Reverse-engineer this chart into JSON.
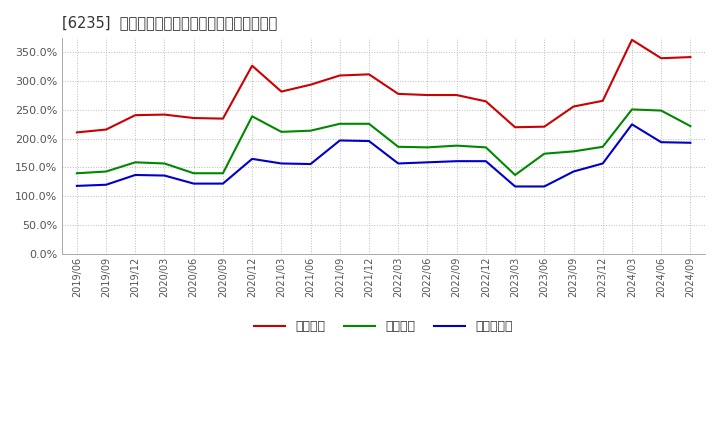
{
  "title": "[6235]  流動比率、当座比率、現預金比率の推移",
  "ylim": [
    0.0,
    3.75
  ],
  "yticks": [
    0.0,
    0.5,
    1.0,
    1.5,
    2.0,
    2.5,
    3.0,
    3.5
  ],
  "legend": [
    "流動比率",
    "当座比率",
    "現預金比率"
  ],
  "dates": [
    "2019/06",
    "2019/09",
    "2019/12",
    "2020/03",
    "2020/06",
    "2020/09",
    "2020/12",
    "2021/03",
    "2021/06",
    "2021/09",
    "2021/12",
    "2022/03",
    "2022/06",
    "2022/09",
    "2022/12",
    "2023/03",
    "2023/06",
    "2023/09",
    "2023/12",
    "2024/03",
    "2024/06",
    "2024/09"
  ],
  "ryudo": [
    2.11,
    2.16,
    2.41,
    2.42,
    2.36,
    2.35,
    3.27,
    2.82,
    2.94,
    3.1,
    3.12,
    2.78,
    2.76,
    2.76,
    2.65,
    2.2,
    2.21,
    2.56,
    2.66,
    3.72,
    3.4,
    3.42
  ],
  "toza": [
    1.4,
    1.43,
    1.59,
    1.57,
    1.4,
    1.4,
    2.39,
    2.12,
    2.14,
    2.26,
    2.26,
    1.86,
    1.85,
    1.88,
    1.85,
    1.37,
    1.74,
    1.78,
    1.86,
    2.51,
    2.49,
    2.22
  ],
  "genkin": [
    1.18,
    1.2,
    1.37,
    1.36,
    1.22,
    1.22,
    1.65,
    1.57,
    1.56,
    1.97,
    1.96,
    1.57,
    1.59,
    1.61,
    1.61,
    1.17,
    1.17,
    1.43,
    1.57,
    2.25,
    1.94,
    1.93
  ],
  "line_color_ryudo": "#cc0000",
  "line_color_toza": "#008800",
  "line_color_genkin": "#0000cc",
  "bg_color": "#ffffff",
  "grid_color": "#aaaaaa",
  "title_color": "#333333",
  "tick_color": "#555555"
}
